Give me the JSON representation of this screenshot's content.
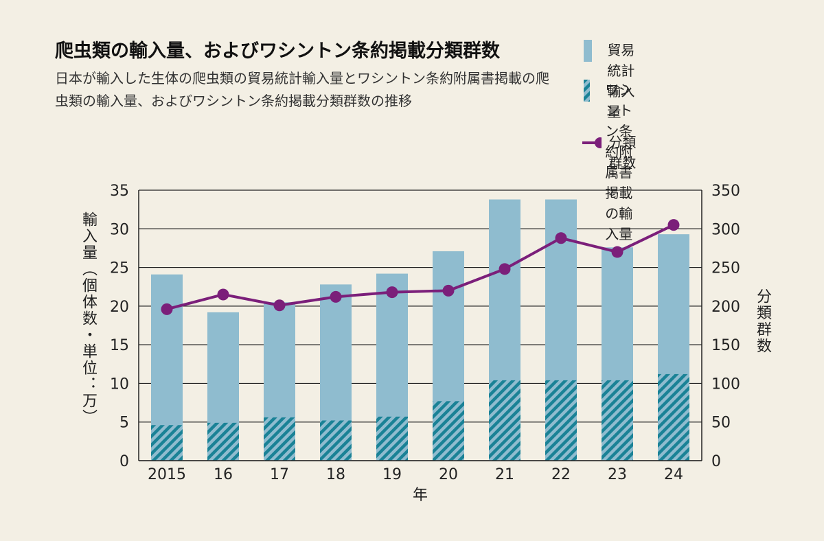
{
  "title": "爬虫類の輸入量、およびワシントン条約掲載分類群数",
  "subtitle": "日本が輸入した生体の爬虫類の貿易統計輸入量とワシントン条約附属書掲載の爬虫類の輸入量、およびワシントン条約掲載分類群数の推移",
  "legend": {
    "trade": "貿易統計輸入量",
    "cites": "ワシントン条約附属書\n掲載の輸入量",
    "taxa": "分類群数"
  },
  "colors": {
    "trade": "#8fbccf",
    "cites": "#1a8296",
    "line": "#7b1f7a",
    "grid": "#222222"
  },
  "chart_data": {
    "type": "bar",
    "categories": [
      "2015",
      "16",
      "17",
      "18",
      "19",
      "20",
      "21",
      "22",
      "23",
      "24"
    ],
    "xlabel": "年",
    "ylabel_left": "輸入量（個体数・単位：万）",
    "ylabel_right": "分類群数",
    "ylim_left": [
      0,
      35
    ],
    "yticks_left": [
      0,
      5,
      10,
      15,
      20,
      25,
      30,
      35
    ],
    "ylim_right": [
      0,
      350
    ],
    "yticks_right": [
      0,
      50,
      100,
      150,
      200,
      250,
      300,
      350
    ],
    "grid": true,
    "series": [
      {
        "name": "貿易統計輸入量",
        "type": "bar",
        "axis": "left",
        "values": [
          24.1,
          19.2,
          20.5,
          22.8,
          24.2,
          27.1,
          33.8,
          33.8,
          27.6,
          29.3
        ]
      },
      {
        "name": "ワシントン条約附属書掲載の輸入量",
        "type": "bar-hatched",
        "axis": "left",
        "values": [
          4.6,
          4.9,
          5.6,
          5.2,
          5.7,
          7.7,
          10.4,
          10.4,
          10.4,
          11.2
        ]
      },
      {
        "name": "分類群数",
        "type": "line",
        "axis": "right",
        "values": [
          196,
          215,
          201,
          212,
          218,
          220,
          248,
          288,
          270,
          305
        ]
      }
    ]
  }
}
